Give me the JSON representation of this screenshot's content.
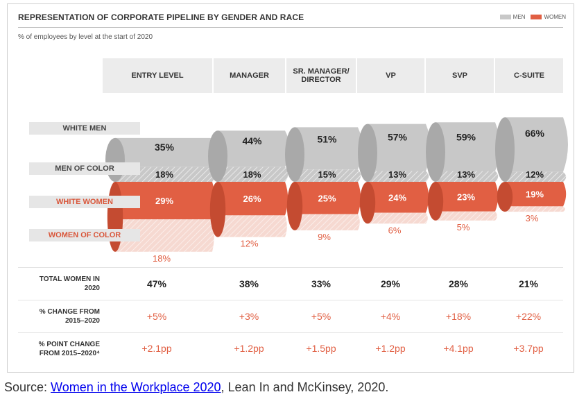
{
  "title": "REPRESENTATION OF CORPORATE PIPELINE BY GENDER AND RACE",
  "subtitle": "% of employees by level at the start of 2020",
  "legend": [
    {
      "label": "MEN",
      "color": "#c8c8c8"
    },
    {
      "label": "WOMEN",
      "color": "#e15f43"
    }
  ],
  "chart_data": {
    "type": "bar",
    "categories": [
      "ENTRY LEVEL",
      "MANAGER",
      "SR. MANAGER/ DIRECTOR",
      "VP",
      "SVP",
      "C-SUITE"
    ],
    "series": [
      {
        "name": "WHITE MEN",
        "values": [
          35,
          44,
          51,
          57,
          59,
          66
        ],
        "labels": [
          "35%",
          "44%",
          "51%",
          "57%",
          "59%",
          "66%"
        ]
      },
      {
        "name": "MEN OF COLOR",
        "values": [
          18,
          18,
          15,
          13,
          13,
          12
        ],
        "labels": [
          "18%",
          "18%",
          "15%",
          "13%",
          "13%",
          "12%"
        ]
      },
      {
        "name": "WHITE WOMEN",
        "values": [
          29,
          26,
          25,
          24,
          23,
          19
        ],
        "labels": [
          "29%",
          "26%",
          "25%",
          "24%",
          "23%",
          "19%"
        ]
      },
      {
        "name": "WOMEN OF COLOR",
        "values": [
          18,
          12,
          9,
          6,
          5,
          3
        ],
        "labels": [
          "18%",
          "12%",
          "9%",
          "6%",
          "5%",
          "3%"
        ]
      }
    ],
    "colors": {
      "men": "#c8c8c8",
      "men_side": "#a9a9a9",
      "women": "#e15f43",
      "women_side": "#c44b31"
    }
  },
  "table_rows": [
    {
      "label": "TOTAL WOMEN IN 2020",
      "values": [
        "47%",
        "38%",
        "33%",
        "29%",
        "28%",
        "21%"
      ],
      "style": "black"
    },
    {
      "label": "% CHANGE FROM 2015–2020",
      "values": [
        "+5%",
        "+3%",
        "+5%",
        "+4%",
        "+18%",
        "+22%"
      ],
      "style": "red"
    },
    {
      "label": "% POINT CHANGE FROM 2015–2020⁴",
      "values": [
        "+2.1pp",
        "+1.2pp",
        "+1.5pp",
        "+1.2pp",
        "+4.1pp",
        "+3.7pp"
      ],
      "style": "red"
    }
  ],
  "source": {
    "prefix": "Source: ",
    "link_text": "Women in the Workplace 2020",
    "suffix": ", Lean In and McKinsey, 2020."
  }
}
